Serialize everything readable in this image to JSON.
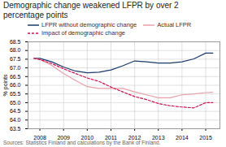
{
  "chart_data": {
    "type": "line",
    "title": "Demographic change weakened LFPR by over 2\npercentage points",
    "ylabel": "% points",
    "source": "Sources: Statistics Finland and calculations by the Bank of Finland.",
    "x": [
      2007.75,
      2008,
      2008.5,
      2009,
      2009.5,
      2010,
      2010.5,
      2011,
      2011.5,
      2012,
      2012.5,
      2013,
      2013.5,
      2014,
      2014.5,
      2015,
      2015.3
    ],
    "series": [
      {
        "name": "LFPR without demographic change",
        "color": "#1a3a6b",
        "line_style": "solid",
        "values": [
          67.55,
          67.55,
          67.35,
          67.05,
          66.82,
          66.72,
          66.75,
          66.88,
          67.12,
          67.4,
          67.35,
          67.28,
          67.28,
          67.35,
          67.52,
          67.85,
          67.85
        ]
      },
      {
        "name": "Actual LFPR",
        "color": "#e8a0a8",
        "line_style": "solid",
        "values": [
          67.55,
          67.48,
          67.15,
          66.68,
          66.28,
          65.92,
          65.82,
          65.82,
          65.82,
          65.62,
          65.45,
          65.28,
          65.28,
          65.45,
          65.5,
          65.58,
          65.6
        ]
      },
      {
        "name": "Impact of demographic change",
        "color": "#cc1155",
        "line_style": "dashed",
        "values": [
          67.55,
          67.48,
          67.25,
          66.95,
          66.68,
          66.42,
          66.22,
          65.9,
          65.62,
          65.35,
          65.18,
          64.95,
          64.82,
          64.75,
          64.7,
          65.0,
          65.0
        ]
      }
    ],
    "xlim": [
      2007.5,
      2015.6
    ],
    "xticks": [
      2008,
      2009,
      2010,
      2011,
      2012,
      2013,
      2014,
      2015
    ],
    "ylim": [
      63.5,
      68.5
    ],
    "yticks": [
      63.5,
      {
        "value": 64,
        "label": "64.0"
      },
      64.5,
      {
        "value": 65,
        "label": "65.0"
      },
      65.5,
      {
        "value": 66,
        "label": "66.0"
      },
      66.5,
      {
        "value": 67,
        "label": "67.0"
      },
      67.5,
      {
        "value": 68,
        "label": "68.0"
      },
      68.5
    ],
    "grid": true,
    "legend": "upper left"
  }
}
